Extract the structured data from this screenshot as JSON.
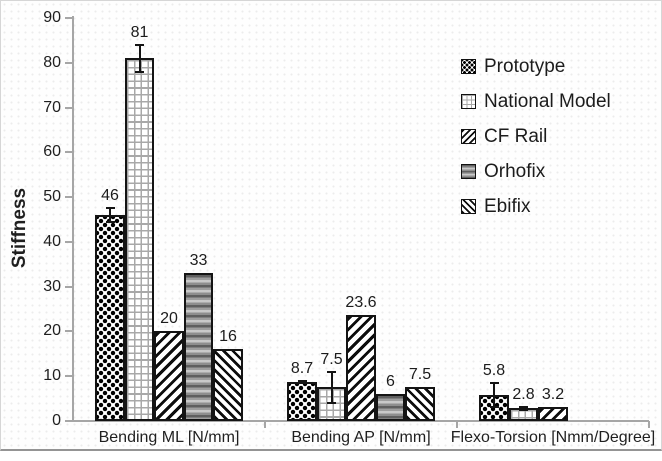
{
  "chart_data": {
    "type": "bar",
    "title": "",
    "ylabel": "Stiffness",
    "ylim": [
      0,
      90
    ],
    "ytick_step": 10,
    "grid": false,
    "legend_position": "right",
    "categories": [
      "Bending ML [N/mm]",
      "Bending AP [N/mm]",
      "Flexo-Torsion [Nmm/Degree]"
    ],
    "series": [
      {
        "name": "Prototype",
        "pattern": "dots",
        "values": [
          46,
          8.7,
          5.8
        ],
        "errors": [
          1.5,
          0.3,
          2.6
        ],
        "labels": [
          "46",
          "8.7",
          "5.8"
        ]
      },
      {
        "name": "National Model",
        "pattern": "grid",
        "values": [
          81,
          7.5,
          2.8
        ],
        "errors": [
          3,
          3.4,
          0.4
        ],
        "labels": [
          "81",
          "7.5",
          "2.8"
        ]
      },
      {
        "name": "CF Rail",
        "pattern": "diagup",
        "values": [
          20,
          23.6,
          3.2
        ],
        "errors": [
          null,
          null,
          null
        ],
        "labels": [
          "20",
          "23.6",
          "3.2"
        ]
      },
      {
        "name": "Orhofix",
        "pattern": "gray",
        "values": [
          33,
          6,
          null
        ],
        "errors": [
          null,
          null,
          null
        ],
        "labels": [
          "33",
          "6",
          ""
        ]
      },
      {
        "name": "Ebifix",
        "pattern": "diagdown",
        "values": [
          16,
          7.5,
          null
        ],
        "errors": [
          null,
          null,
          null
        ],
        "labels": [
          "16",
          "7.5",
          ""
        ]
      }
    ],
    "colors": {
      "bar_outline": "#141414",
      "axis": "#a6a6a6",
      "text": "#1f1f1f"
    }
  }
}
